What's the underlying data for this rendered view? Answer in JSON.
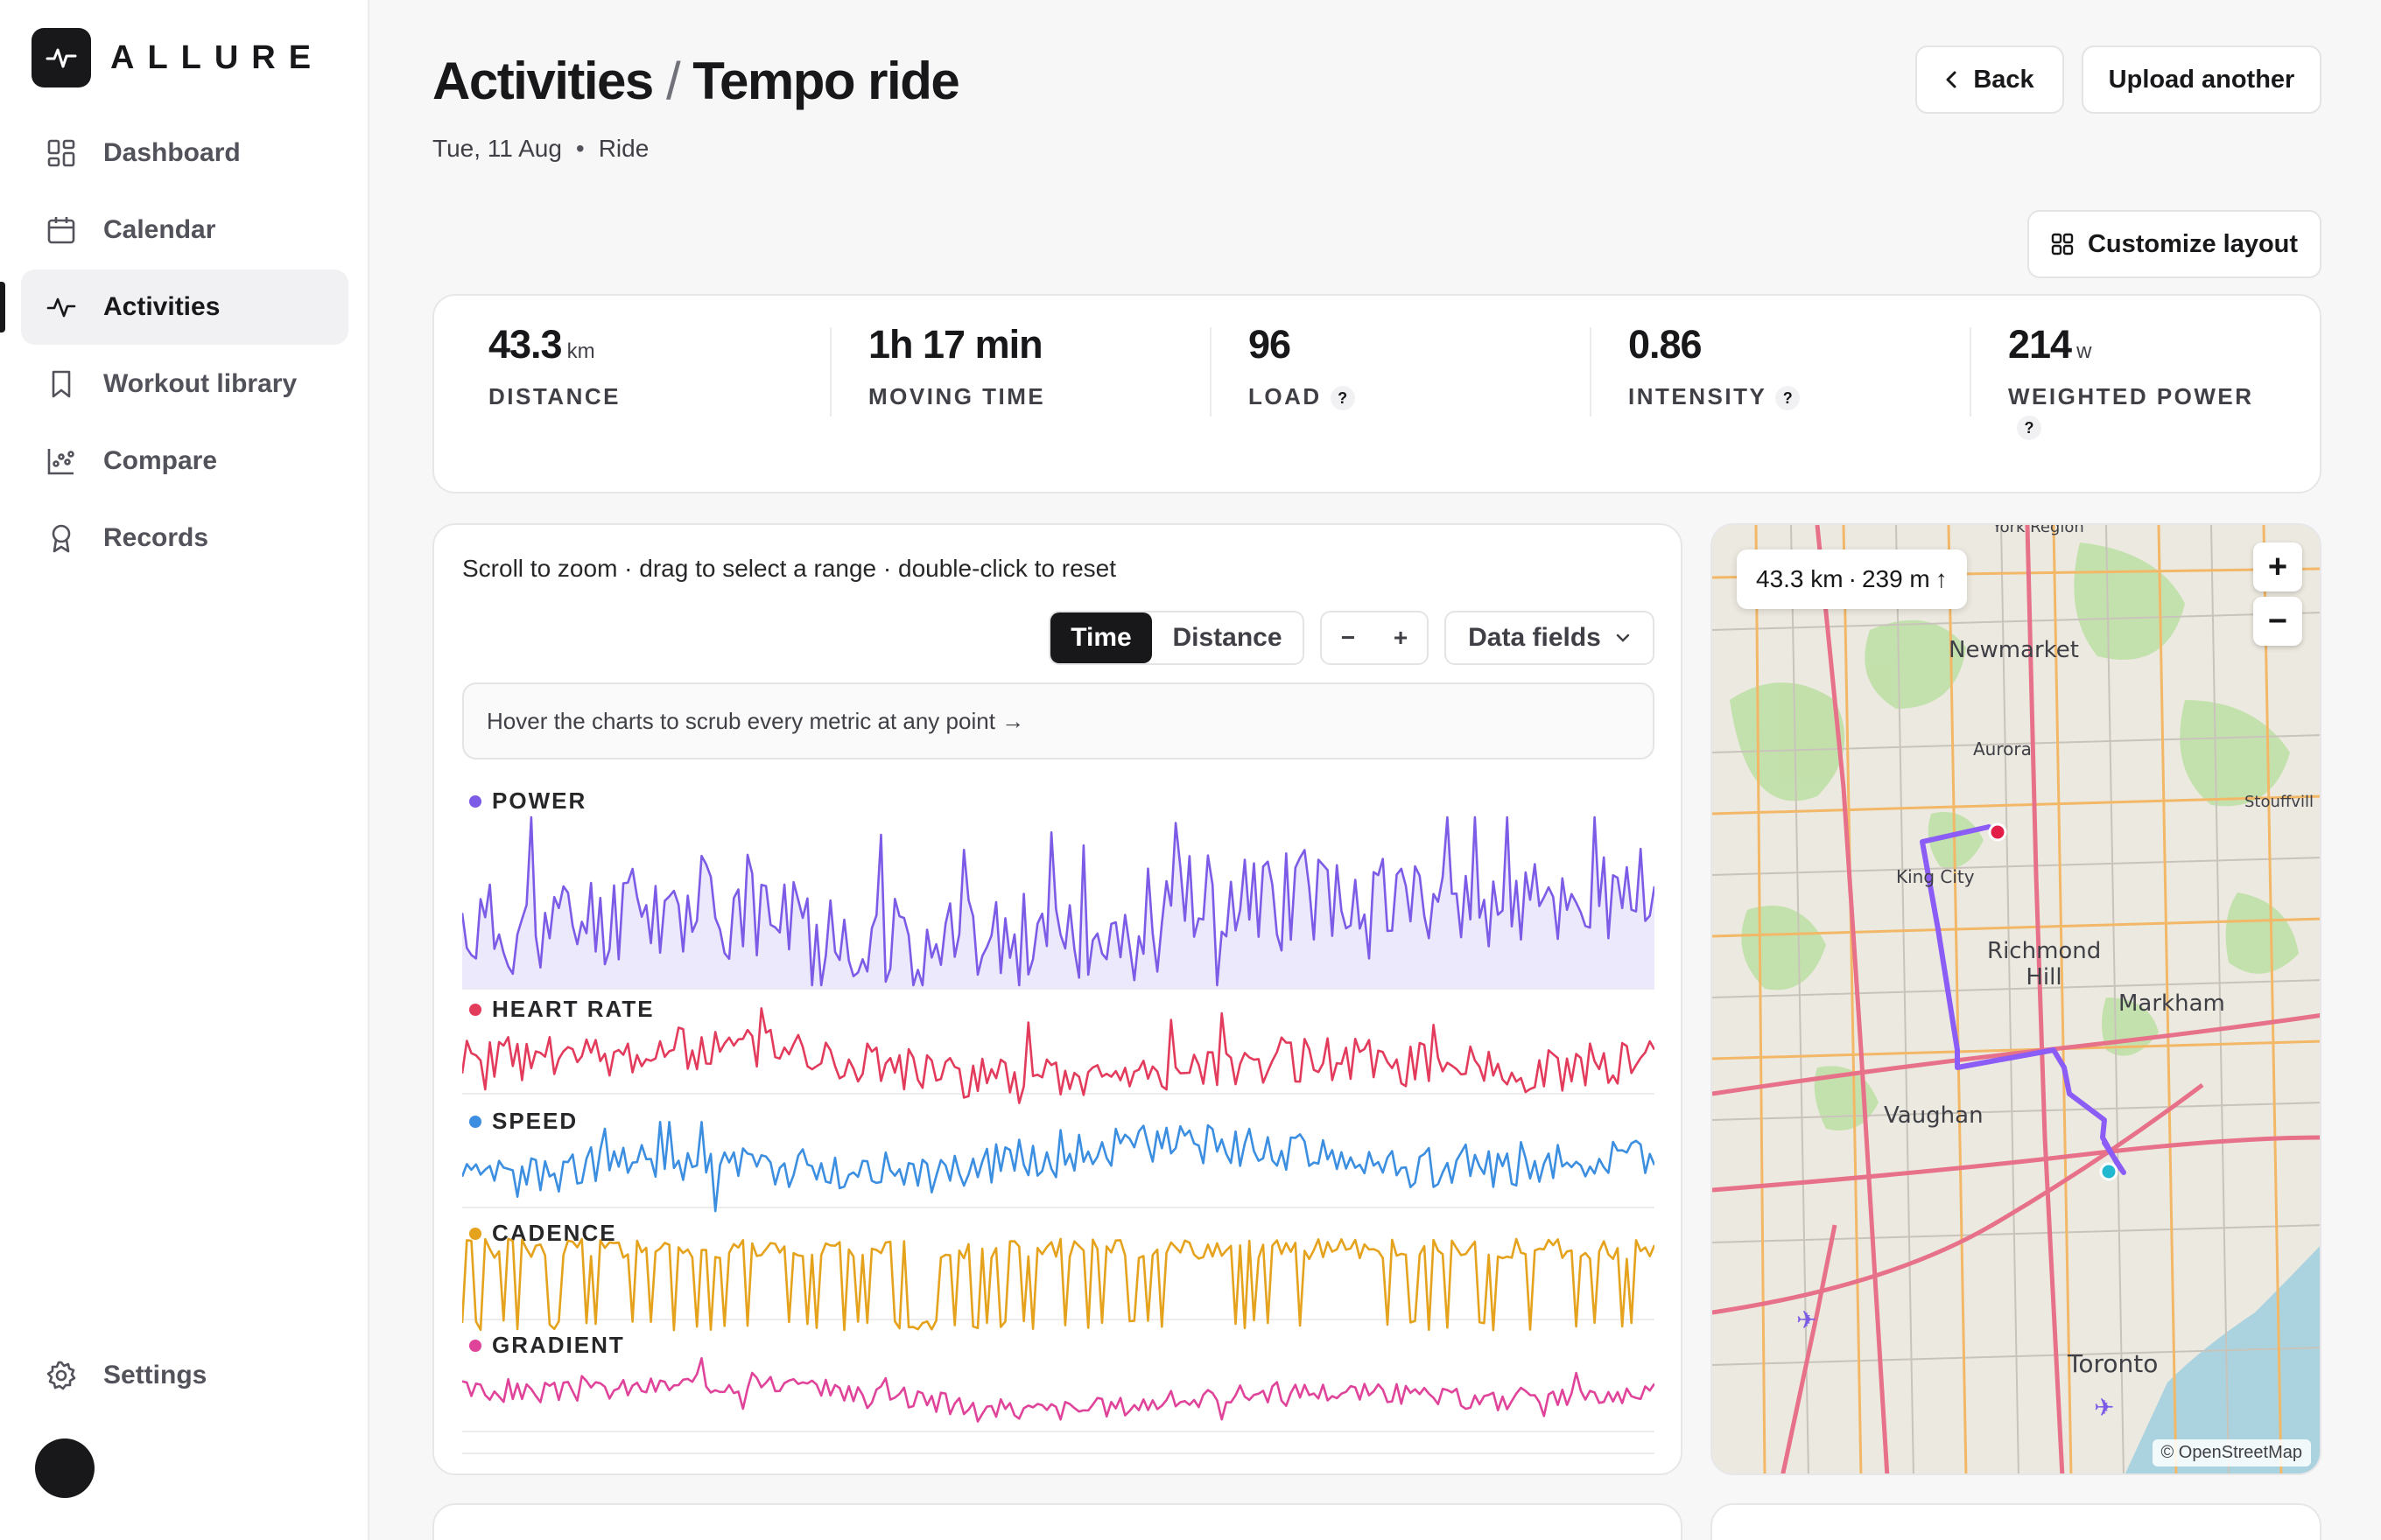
{
  "app": {
    "name": "ALLURE"
  },
  "sidebar": {
    "items": [
      {
        "label": "Dashboard",
        "icon": "grid-icon"
      },
      {
        "label": "Calendar",
        "icon": "calendar-icon"
      },
      {
        "label": "Activities",
        "icon": "activity-icon",
        "active": true
      },
      {
        "label": "Workout library",
        "icon": "bookmark-icon"
      },
      {
        "label": "Compare",
        "icon": "scatter-icon"
      },
      {
        "label": "Records",
        "icon": "award-icon"
      }
    ],
    "settings_label": "Settings"
  },
  "header": {
    "breadcrumb_root": "Activities",
    "breadcrumb_sep": "/",
    "breadcrumb_current": "Tempo ride",
    "date": "Tue, 11 Aug",
    "dot": "•",
    "sport": "Ride",
    "back_label": "Back",
    "upload_label": "Upload another",
    "customize_label": "Customize layout"
  },
  "stats": [
    {
      "value": "43.3",
      "unit": "km",
      "label": "DISTANCE",
      "help": false
    },
    {
      "value": "1h 17 min",
      "unit": "",
      "label": "MOVING TIME",
      "help": false
    },
    {
      "value": "96",
      "unit": "",
      "label": "LOAD",
      "help": true
    },
    {
      "value": "0.86",
      "unit": "",
      "label": "INTENSITY",
      "help": true
    },
    {
      "value": "214",
      "unit": "w",
      "label": "WEIGHTED POWER",
      "help": true
    }
  ],
  "help_glyph": "?",
  "charts_panel": {
    "instructions": "Scroll to zoom · drag to select a range · double-click to reset",
    "x_mode_time": "Time",
    "x_mode_distance": "Distance",
    "x_mode_selected": "Time",
    "zoom_out": "−",
    "zoom_in": "+",
    "data_fields_label": "Data fields",
    "hint": "Hover the charts to scrub every metric at any point →"
  },
  "chart_data": [
    {
      "type": "area",
      "title": "POWER",
      "color": "#7c5ce6",
      "fill": "#ede9fc",
      "seed": 11,
      "base": 0.45,
      "amp": 0.28,
      "spike": 0.1
    },
    {
      "type": "line",
      "title": "HEART RATE",
      "color": "#e23b5c",
      "seed": 23,
      "base": 0.5,
      "amp": 0.22,
      "spike": 0.04
    },
    {
      "type": "line",
      "title": "SPEED",
      "color": "#3b8ee0",
      "seed": 37,
      "base": 0.55,
      "amp": 0.2,
      "spike": 0.06
    },
    {
      "type": "line",
      "title": "CADENCE",
      "color": "#e5a21d",
      "seed": 51,
      "base": 0.2,
      "amp": 0.12,
      "spike": 0.3
    },
    {
      "type": "line",
      "title": "GRADIENT",
      "color": "#e0449a",
      "seed": 67,
      "base": 0.5,
      "amp": 0.12,
      "spike": 0.05
    }
  ],
  "map": {
    "summary_distance": "43.3 km",
    "summary_sep": "·",
    "summary_elev": "239 m",
    "summary_arrow": "↑",
    "zoom_in": "+",
    "zoom_out": "−",
    "attribution": "© OpenStreetMap",
    "labels": [
      "Newmarket",
      "Aurora",
      "King City",
      "Richmond Hill",
      "Markham",
      "Vaughan",
      "Toronto",
      "Stouffvill",
      "York Region"
    ],
    "route_color": "#8b5cf6",
    "start_color": "#22b8cf",
    "end_color": "#e11d48"
  }
}
